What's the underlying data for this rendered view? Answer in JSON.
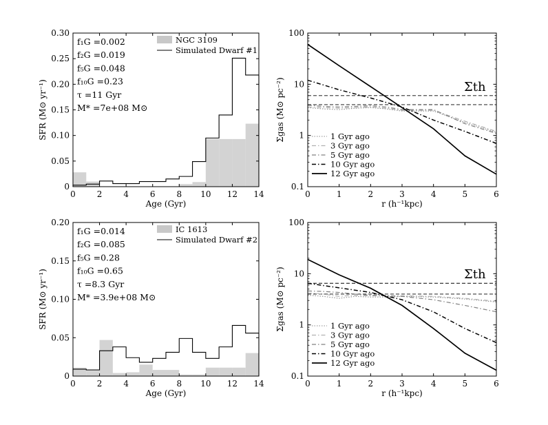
{
  "chart_data": [
    {
      "id": "top-left",
      "type": "bar",
      "xlabel": "Age (Gyr)",
      "ylabel": "SFR (M⊙ yr⁻¹)",
      "xlim": [
        0,
        14
      ],
      "ylim": [
        0,
        0.3
      ],
      "xticks": [
        "0",
        "2",
        "4",
        "6",
        "8",
        "10",
        "12",
        "14"
      ],
      "yticks": [
        "0",
        "0.05",
        "0.10",
        "0.15",
        "0.20",
        "0.25",
        "0.30"
      ],
      "annotations": [
        "f₁G =0.002",
        "f₂G =0.019",
        "f₅G =0.048",
        "f₁₀G =0.23",
        "τ =11 Gyr",
        "M* =7e+08 M⊙"
      ],
      "bin_edges": [
        0,
        1,
        2,
        3,
        4,
        5,
        6,
        7,
        8,
        9,
        10,
        11,
        12,
        13,
        14
      ],
      "series": [
        {
          "name": "NGC 3109",
          "kind": "filled",
          "edges": [
            0,
            1,
            2,
            3,
            4,
            5,
            6,
            7,
            8,
            9,
            10,
            11,
            12,
            13,
            14
          ],
          "values": [
            0.028,
            0.01,
            0.0,
            0.0,
            0.0,
            0.0,
            0.0,
            0.0,
            0.005,
            0.009,
            0.093,
            0.093,
            0.093,
            0.123,
            0.123
          ]
        },
        {
          "name": "Simulated Dwarf #1",
          "kind": "step",
          "values": [
            0.003,
            0.005,
            0.011,
            0.006,
            0.006,
            0.01,
            0.01,
            0.015,
            0.02,
            0.049,
            0.095,
            0.14,
            0.251,
            0.218
          ]
        }
      ]
    },
    {
      "id": "top-right",
      "type": "line",
      "xlabel": "r (h⁻¹kpc)",
      "ylabel": "Σgas (M⊙ pc⁻²)",
      "xlim": [
        0,
        6
      ],
      "ylim": [
        0.1,
        100
      ],
      "yscale": "log",
      "xticks": [
        "0",
        "1",
        "2",
        "3",
        "4",
        "5",
        "6"
      ],
      "yticks": [
        "0.1",
        "1",
        "10",
        "100"
      ],
      "threshold_label": "Σth",
      "threshold_lines": [
        6.0,
        4.0
      ],
      "series": [
        {
          "name": "1 Gyr ago",
          "style": "dotted",
          "x": [
            0,
            0.5,
            1,
            1.5,
            2,
            2.5,
            3,
            3.5,
            4,
            5,
            6
          ],
          "y": [
            3.5,
            3.3,
            3.2,
            3.4,
            3.5,
            3.3,
            3.0,
            3.0,
            3.0,
            1.8,
            1.15
          ]
        },
        {
          "name": "3 Gyr ago",
          "style": "dashdot-light",
          "x": [
            0,
            0.5,
            1,
            1.5,
            2,
            2.5,
            3,
            3.5,
            4,
            5,
            6
          ],
          "y": [
            3.6,
            3.5,
            3.4,
            3.5,
            3.6,
            3.4,
            3.1,
            3.1,
            3.1,
            1.9,
            1.2
          ]
        },
        {
          "name": "5 Gyr ago",
          "style": "dashdot-gray",
          "x": [
            0,
            0.5,
            1,
            1.5,
            2,
            2.5,
            3,
            3.5,
            4,
            5,
            6
          ],
          "y": [
            3.9,
            3.7,
            3.6,
            3.7,
            3.8,
            3.6,
            3.2,
            3.2,
            3.2,
            1.7,
            1.1
          ]
        },
        {
          "name": "10 Gyr ago",
          "style": "dashdot",
          "x": [
            0,
            1,
            2,
            3,
            4,
            5,
            6
          ],
          "y": [
            12,
            7.8,
            5.4,
            3.6,
            2.0,
            1.2,
            0.7
          ]
        },
        {
          "name": "12 Gyr ago",
          "style": "solid",
          "x": [
            0,
            1,
            2,
            3,
            4,
            5,
            6
          ],
          "y": [
            60,
            23,
            9.0,
            3.5,
            1.35,
            0.4,
            0.175
          ]
        }
      ]
    },
    {
      "id": "bottom-left",
      "type": "bar",
      "xlabel": "Age (Gyr)",
      "ylabel": "SFR (M⊙ yr⁻¹)",
      "xlim": [
        0,
        14
      ],
      "ylim": [
        0,
        0.2
      ],
      "xticks": [
        "0",
        "2",
        "4",
        "6",
        "8",
        "10",
        "12",
        "14"
      ],
      "yticks": [
        "0",
        "0.05",
        "0.10",
        "0.15",
        "0.20"
      ],
      "annotations": [
        "f₁G =0.014",
        "f₂G =0.085",
        "f₅G =0.28",
        "f₁₀G =0.65",
        "τ =8.3 Gyr",
        "M* =3.9e+08 M⊙"
      ],
      "series": [
        {
          "name": "IC 1613",
          "kind": "filled",
          "edges": [
            0,
            1,
            2,
            3,
            4,
            5,
            6,
            7,
            8,
            9,
            10,
            11,
            12,
            13,
            14
          ],
          "values": [
            0.011,
            0.007,
            0.047,
            0.004,
            0.005,
            0.015,
            0.008,
            0.008,
            0.002,
            0.002,
            0.011,
            0.011,
            0.011,
            0.03,
            0.03
          ]
        },
        {
          "name": "Simulated Dwarf #2",
          "kind": "step",
          "values": [
            0.009,
            0.008,
            0.033,
            0.038,
            0.024,
            0.018,
            0.023,
            0.031,
            0.049,
            0.031,
            0.023,
            0.038,
            0.066,
            0.056
          ]
        }
      ]
    },
    {
      "id": "bottom-right",
      "type": "line",
      "xlabel": "r (h⁻¹kpc)",
      "ylabel": "Σgas (M⊙ pc⁻²)",
      "xlim": [
        0,
        6
      ],
      "ylim": [
        0.1,
        100
      ],
      "yscale": "log",
      "xticks": [
        "0",
        "1",
        "2",
        "3",
        "4",
        "5",
        "6"
      ],
      "yticks": [
        "0.1",
        "1",
        "10",
        "100"
      ],
      "threshold_label": "Σth",
      "threshold_lines": [
        6.5,
        4.0
      ],
      "series": [
        {
          "name": "1 Gyr ago",
          "style": "dotted",
          "x": [
            0,
            0.5,
            1,
            1.5,
            2,
            2.5,
            3,
            4,
            5,
            6
          ],
          "y": [
            3.8,
            3.6,
            3.3,
            3.6,
            3.5,
            3.5,
            3.6,
            3.5,
            3.2,
            2.8
          ]
        },
        {
          "name": "3 Gyr ago",
          "style": "dashdot-light",
          "x": [
            0,
            0.5,
            1,
            1.5,
            2,
            2.5,
            3,
            4,
            5,
            6
          ],
          "y": [
            4.2,
            4.0,
            3.6,
            3.8,
            3.7,
            3.7,
            3.7,
            3.6,
            3.3,
            2.9
          ]
        },
        {
          "name": "5 Gyr ago",
          "style": "dashdot-gray",
          "x": [
            0,
            0.5,
            1,
            1.5,
            2,
            3,
            4,
            5,
            6
          ],
          "y": [
            4.6,
            4.5,
            4.3,
            4.0,
            3.8,
            3.6,
            3.1,
            2.4,
            1.8
          ]
        },
        {
          "name": "10 Gyr ago",
          "style": "dashdot",
          "x": [
            0,
            1,
            2,
            3,
            4,
            5,
            6
          ],
          "y": [
            6.5,
            5.3,
            4.3,
            3.1,
            1.8,
            0.85,
            0.45
          ]
        },
        {
          "name": "12 Gyr ago",
          "style": "solid",
          "x": [
            0,
            1,
            2,
            3,
            4,
            5,
            6
          ],
          "y": [
            19,
            9.5,
            5.2,
            2.4,
            0.85,
            0.28,
            0.13
          ]
        }
      ]
    }
  ]
}
